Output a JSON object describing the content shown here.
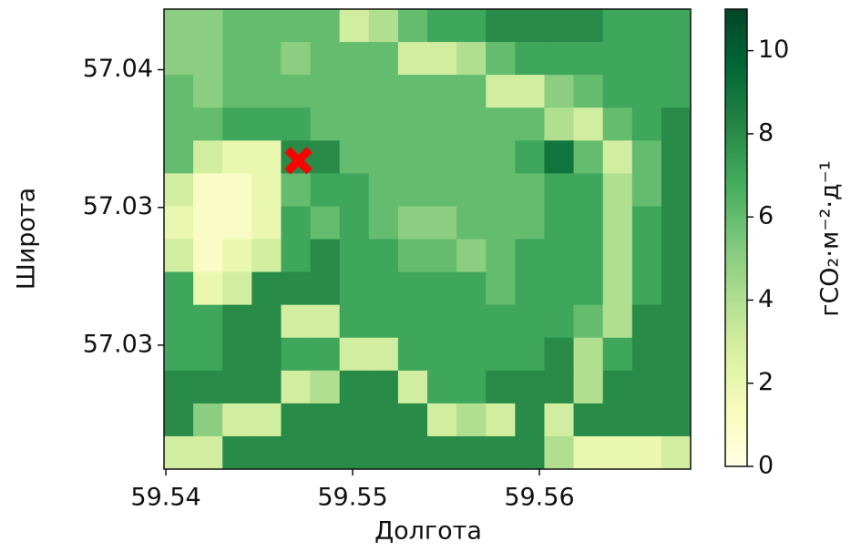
{
  "chart_data": {
    "type": "heatmap",
    "xlabel": "Долгота",
    "ylabel": "Широта",
    "xlim": [
      59.5399,
      59.5681
    ],
    "ylim": [
      57.0255,
      57.0422
    ],
    "xticks": [
      59.54,
      59.55,
      59.56
    ],
    "yticks": [
      57.04,
      {
        "value": 57.035,
        "label": "57.03"
      },
      57.03
    ],
    "colormap": [
      "#ffffe5",
      "#f7fcb9",
      "#d9f0a3",
      "#addd8e",
      "#78c679",
      "#41ab5d",
      "#238443",
      "#006837",
      "#004529"
    ],
    "colorbar": {
      "label": "гCO₂·м⁻²·д⁻¹",
      "lim": [
        0,
        11
      ],
      "ticks": [
        0,
        2,
        4,
        6,
        8,
        10
      ]
    },
    "z": [
      [
        5,
        5,
        6,
        6,
        6,
        6,
        3,
        4,
        6,
        7,
        7,
        8,
        8,
        8,
        8,
        7,
        7,
        7
      ],
      [
        5,
        5,
        6,
        6,
        5,
        6,
        6,
        6,
        3,
        3,
        4,
        6,
        7,
        7,
        7,
        7,
        7,
        7
      ],
      [
        6,
        5,
        6,
        6,
        6,
        6,
        6,
        6,
        6,
        6,
        6,
        3,
        3,
        5,
        6,
        7,
        7,
        7
      ],
      [
        6,
        6,
        7,
        7,
        7,
        6,
        6,
        6,
        6,
        6,
        6,
        6,
        6,
        4,
        3,
        6,
        7,
        8
      ],
      [
        6,
        3,
        2,
        2,
        8,
        8,
        6,
        6,
        6,
        6,
        6,
        6,
        7,
        9,
        6,
        3,
        6,
        8
      ],
      [
        3,
        1,
        1,
        2,
        6,
        7,
        7,
        6,
        6,
        6,
        6,
        6,
        6,
        7,
        7,
        4,
        6,
        8
      ],
      [
        2,
        1,
        1,
        2,
        7,
        6,
        7,
        6,
        5,
        5,
        6,
        6,
        6,
        7,
        7,
        4,
        7,
        8
      ],
      [
        3,
        1,
        2,
        3,
        7,
        8,
        7,
        7,
        6,
        6,
        5,
        6,
        7,
        7,
        7,
        4,
        7,
        8
      ],
      [
        7,
        2,
        3,
        8,
        8,
        8,
        7,
        7,
        7,
        7,
        7,
        6,
        7,
        7,
        7,
        4,
        7,
        8
      ],
      [
        7,
        7,
        8,
        8,
        3,
        3,
        7,
        7,
        7,
        7,
        7,
        7,
        7,
        7,
        6,
        4,
        8,
        8
      ],
      [
        7,
        7,
        8,
        8,
        7,
        7,
        3,
        3,
        7,
        7,
        7,
        7,
        7,
        8,
        4,
        7,
        8,
        8
      ],
      [
        8,
        8,
        8,
        8,
        3,
        4,
        8,
        8,
        3,
        7,
        7,
        8,
        8,
        8,
        4,
        8,
        8,
        8
      ],
      [
        8,
        5,
        3,
        3,
        8,
        8,
        8,
        8,
        8,
        3,
        4,
        3,
        8,
        3,
        8,
        8,
        8,
        8
      ],
      [
        3,
        3,
        8,
        8,
        8,
        8,
        8,
        8,
        8,
        8,
        8,
        8,
        8,
        4,
        2,
        2,
        2,
        3
      ]
    ],
    "marker": {
      "x": 59.5471,
      "y": 57.0367,
      "color": "#ff0000"
    }
  }
}
